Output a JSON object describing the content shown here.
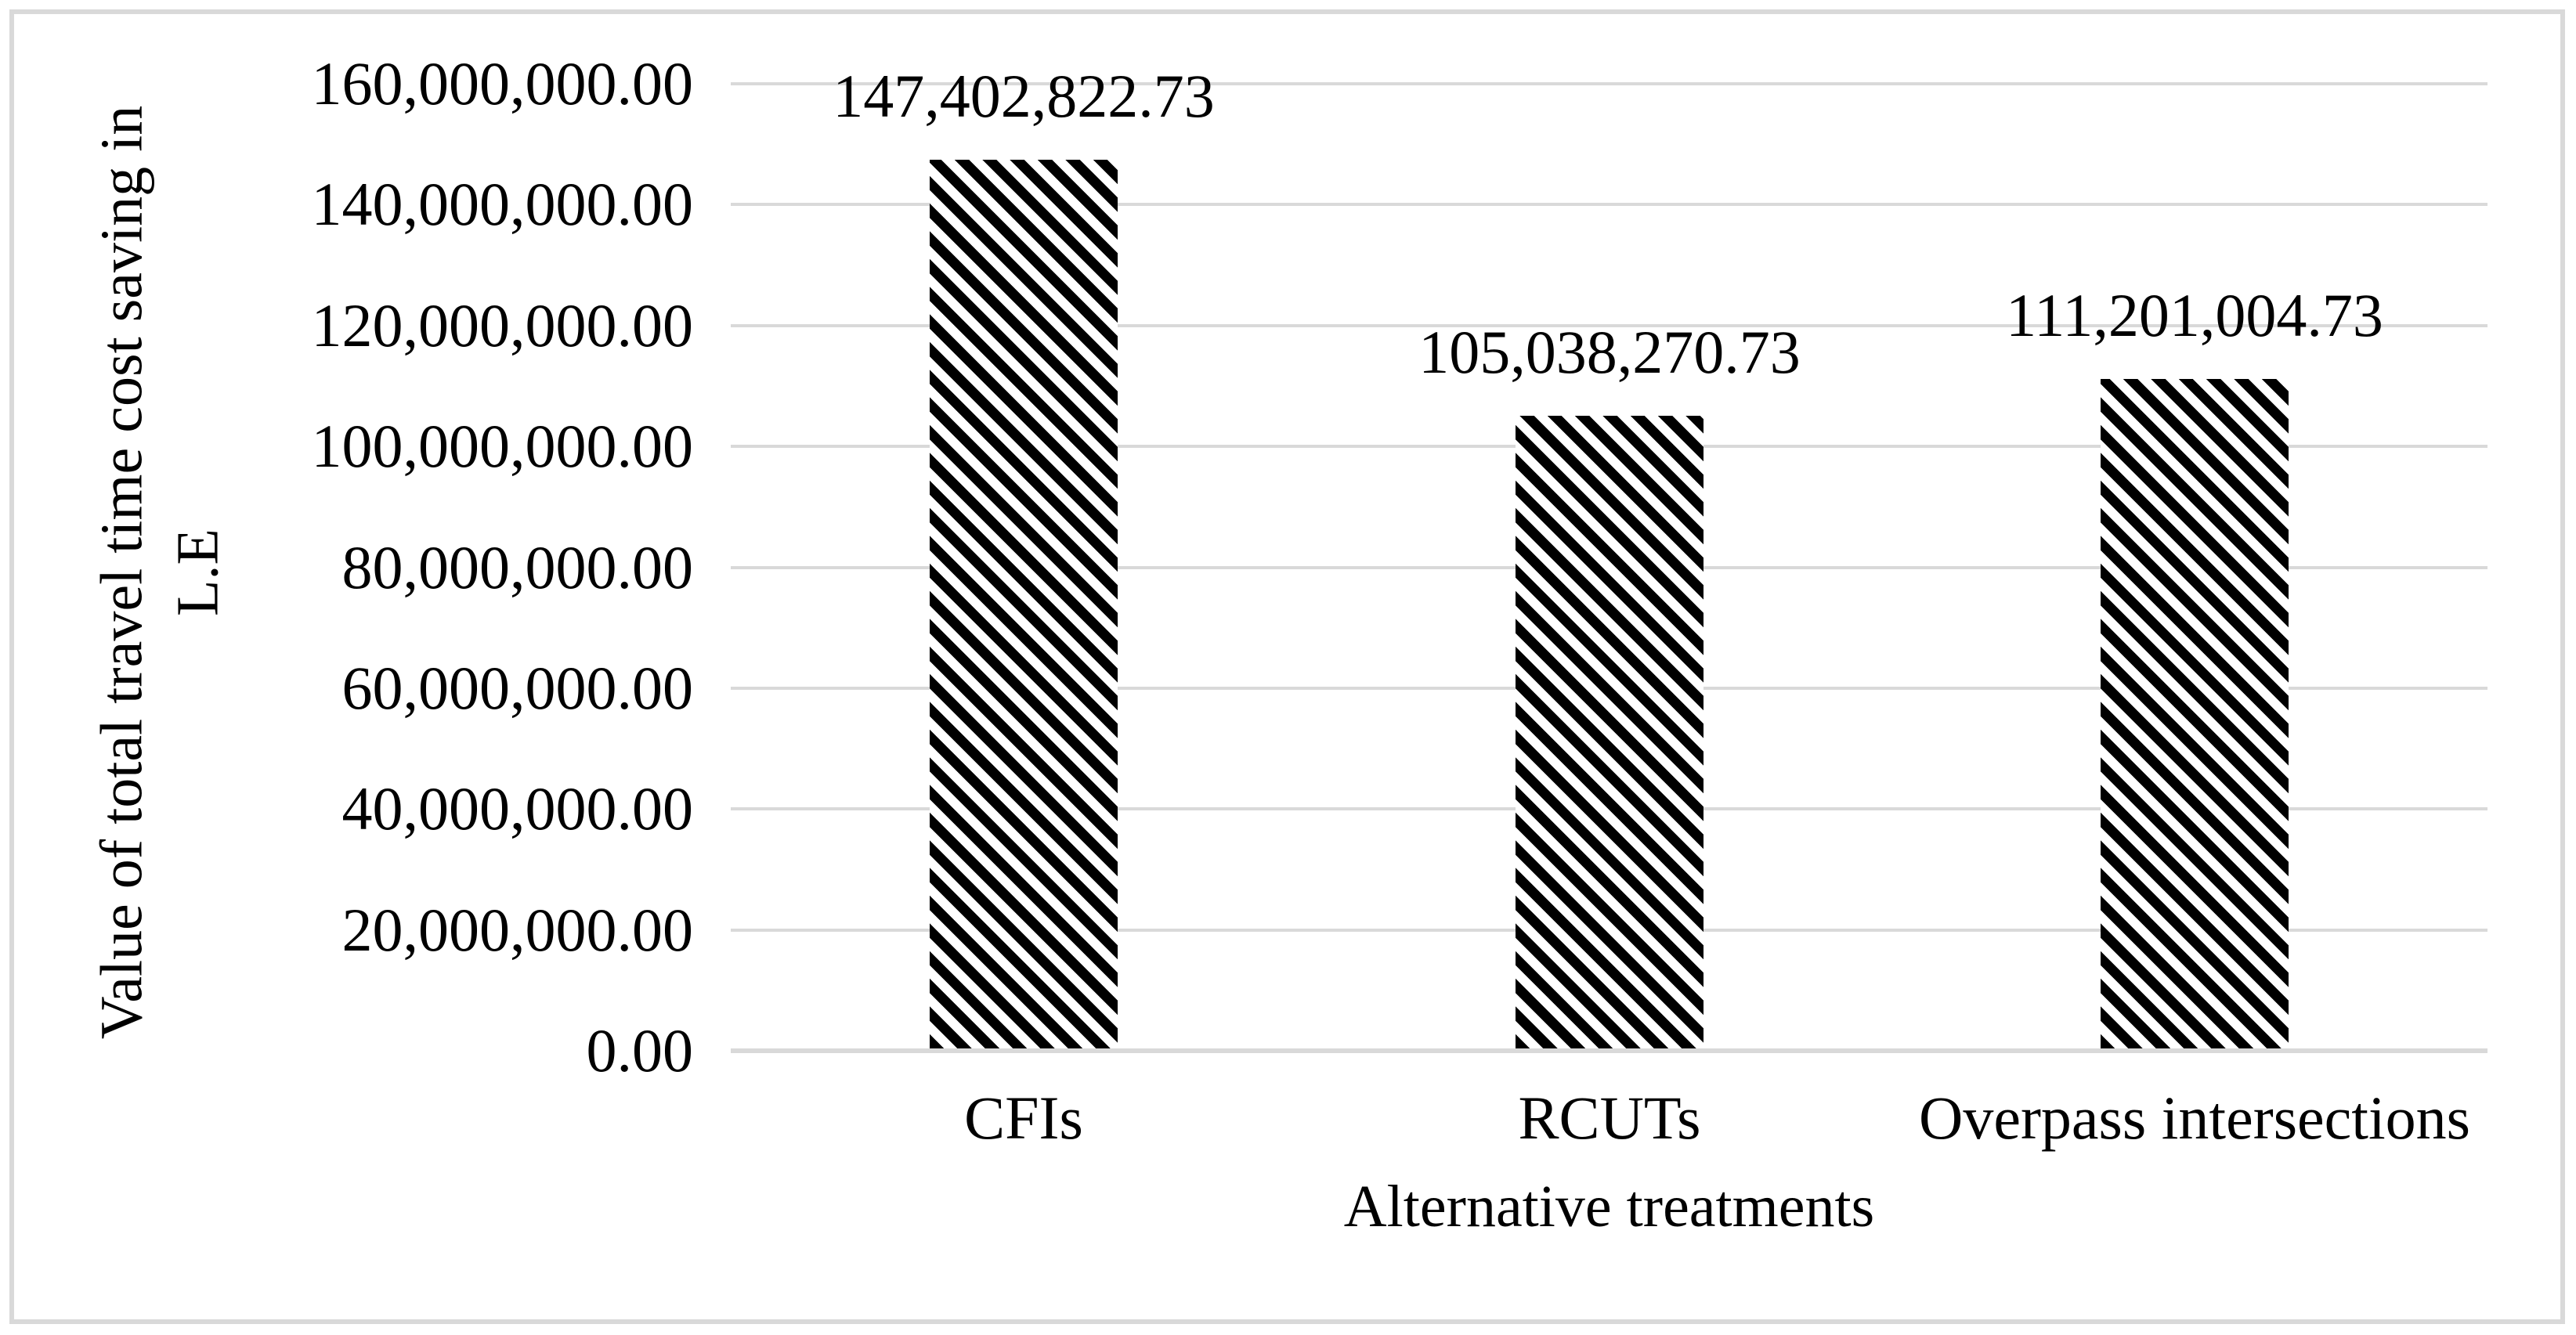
{
  "chart_data": {
    "type": "bar",
    "categories": [
      "CFIs",
      "RCUTs",
      "Overpass intersections"
    ],
    "values": [
      147402822.73,
      105038270.73,
      111201004.73
    ],
    "data_labels": [
      "147,402,822.73",
      "105,038,270.73",
      "111,201,004.73"
    ],
    "xlabel": "Alternative treatments",
    "ylabel": "Value of total travel time cost saving in L.E",
    "ylabel_line1": "Value of total travel time cost saving in",
    "ylabel_line2": "L.E",
    "ylim": [
      0,
      160000000
    ],
    "ytick_step": 20000000,
    "ytick_labels": [
      "0.00",
      "20,000,000.00",
      "40,000,000.00",
      "60,000,000.00",
      "80,000,000.00",
      "100,000,000.00",
      "120,000,000.00",
      "140,000,000.00",
      "160,000,000.00"
    ],
    "grid": "horizontal",
    "legend": "none",
    "bar_pattern": "wide-downward-diagonal-hatch",
    "colors": {
      "bar_stripe": "#000000",
      "bar_background": "#ffffff",
      "gridline": "#d9d9d9",
      "axis_line": "#d9d9d9",
      "border": "#d9d9d9",
      "text": "#000000",
      "background": "#ffffff"
    }
  }
}
